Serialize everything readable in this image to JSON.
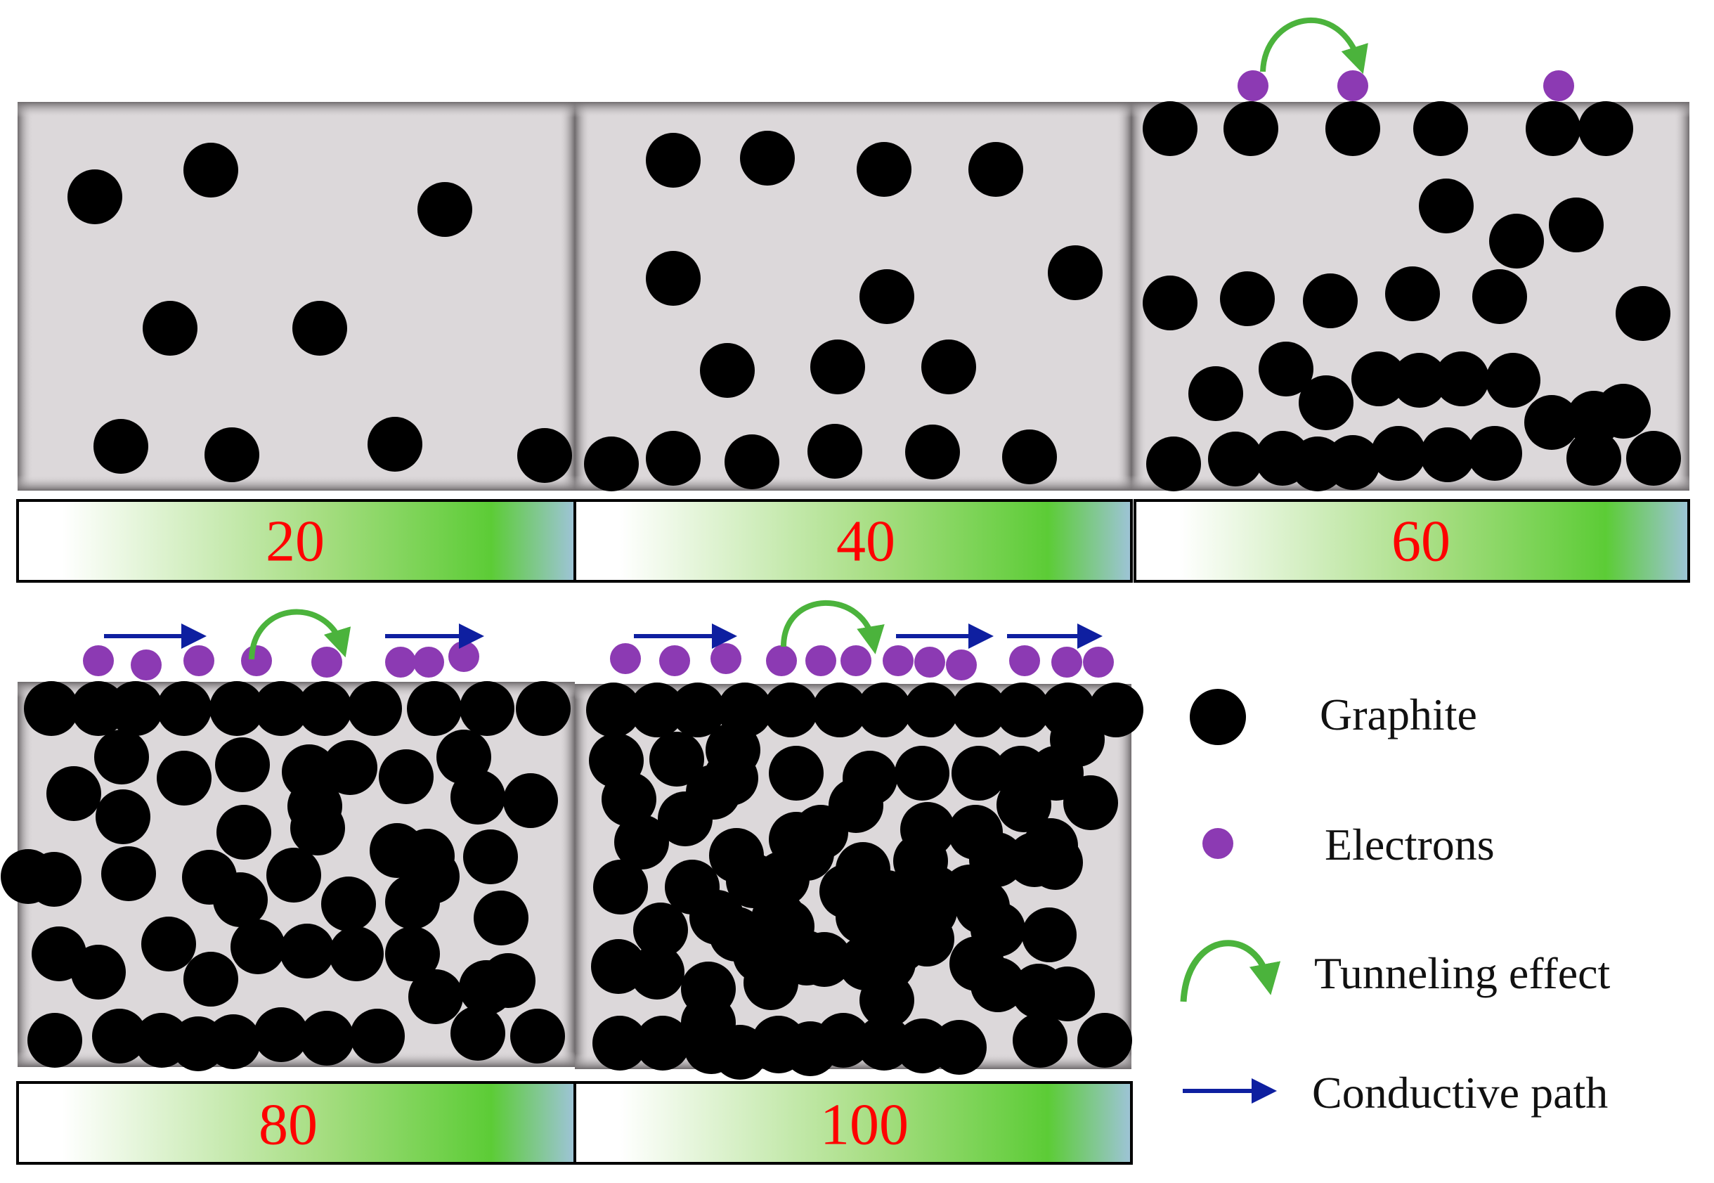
{
  "colors": {
    "graphite": "#000000",
    "electron": "#8c3ab3",
    "tunneling": "#4bb33c",
    "conductive_path": "#0e1fa0",
    "label_text": "#ff0000",
    "box_fill": "#dcd8da",
    "bar_green": "#66cc33"
  },
  "panels": [
    {
      "label": "20",
      "electrons": 0,
      "tunneling": 0,
      "conductive_paths": 0
    },
    {
      "label": "40",
      "electrons": 0,
      "tunneling": 0,
      "conductive_paths": 0
    },
    {
      "label": "60",
      "electrons": 3,
      "tunneling": 1,
      "conductive_paths": 0
    },
    {
      "label": "80",
      "electrons": 9,
      "tunneling": 1,
      "conductive_paths": 2
    },
    {
      "label": "100",
      "electrons": 13,
      "tunneling": 1,
      "conductive_paths": 3
    }
  ],
  "legend": {
    "graphite": "Graphite",
    "electrons": "Electrons",
    "tunneling": "Tunneling effect",
    "conductive_path": "Conductive path"
  }
}
